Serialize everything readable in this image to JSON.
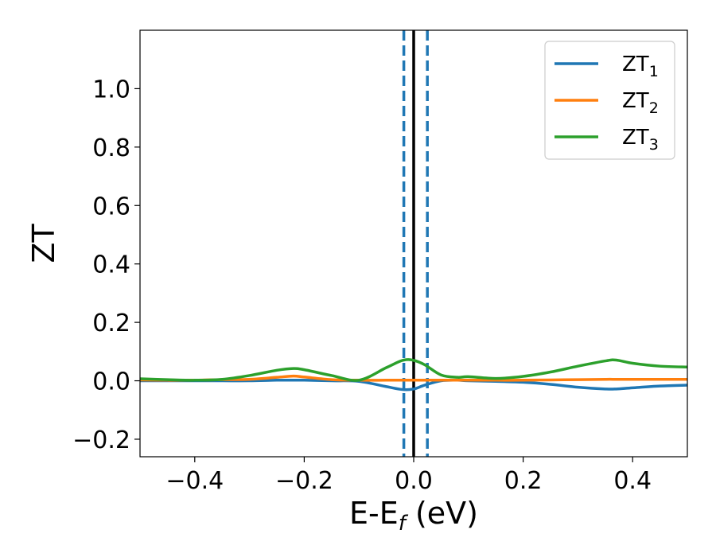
{
  "chart_data": {
    "type": "line",
    "xlabel": "E-E",
    "xlabel_sub": "f",
    "xlabel_unit": " (eV)",
    "ylabel": "ZT",
    "xlim": [
      -0.5,
      0.5
    ],
    "ylim": [
      -0.26,
      1.2
    ],
    "xticks": [
      -0.4,
      -0.2,
      0.0,
      0.2,
      0.4
    ],
    "xtick_labels": [
      "−0.4",
      "−0.2",
      "0.0",
      "0.2",
      "0.4"
    ],
    "yticks": [
      -0.2,
      0.0,
      0.2,
      0.4,
      0.6,
      0.8,
      1.0
    ],
    "ytick_labels": [
      "−0.2",
      "0.0",
      "0.2",
      "0.4",
      "0.6",
      "0.8",
      "1.0"
    ],
    "legend_position": "top-right",
    "grid": false,
    "vlines": [
      {
        "x": 0.0,
        "style": "solid",
        "color": "#000000"
      },
      {
        "x": -0.018,
        "style": "dashed",
        "color": "#1f77b4"
      },
      {
        "x": 0.025,
        "style": "dashed",
        "color": "#1f77b4"
      }
    ],
    "x": [
      -0.5,
      -0.45,
      -0.4,
      -0.35,
      -0.3,
      -0.25,
      -0.22,
      -0.2,
      -0.15,
      -0.1,
      -0.05,
      -0.02,
      0.0,
      0.02,
      0.05,
      0.08,
      0.1,
      0.15,
      0.2,
      0.25,
      0.3,
      0.35,
      0.37,
      0.4,
      0.45,
      0.5
    ],
    "series": [
      {
        "name": "ZT",
        "sub": "1",
        "color": "#1f77b4",
        "values": [
          0.0,
          0.0,
          0.0,
          0.0,
          0.0,
          0.002,
          0.002,
          0.002,
          0.0,
          -0.002,
          -0.02,
          -0.03,
          -0.028,
          -0.015,
          0.0,
          0.002,
          0.0,
          -0.002,
          -0.005,
          -0.012,
          -0.022,
          -0.028,
          -0.028,
          -0.024,
          -0.018,
          -0.015
        ]
      },
      {
        "name": "ZT",
        "sub": "2",
        "color": "#ff7f0e",
        "values": [
          0.003,
          0.002,
          0.002,
          0.004,
          0.005,
          0.012,
          0.016,
          0.013,
          0.004,
          0.002,
          0.002,
          0.002,
          0.002,
          0.002,
          0.002,
          0.002,
          0.002,
          0.002,
          0.002,
          0.003,
          0.004,
          0.005,
          0.005,
          0.005,
          0.005,
          0.005
        ]
      },
      {
        "name": "ZT",
        "sub": "3",
        "color": "#2ca02c",
        "values": [
          0.007,
          0.004,
          0.002,
          0.005,
          0.018,
          0.036,
          0.042,
          0.038,
          0.018,
          0.002,
          0.045,
          0.07,
          0.07,
          0.055,
          0.02,
          0.012,
          0.014,
          0.008,
          0.015,
          0.03,
          0.05,
          0.068,
          0.071,
          0.06,
          0.05,
          0.047
        ]
      }
    ]
  }
}
